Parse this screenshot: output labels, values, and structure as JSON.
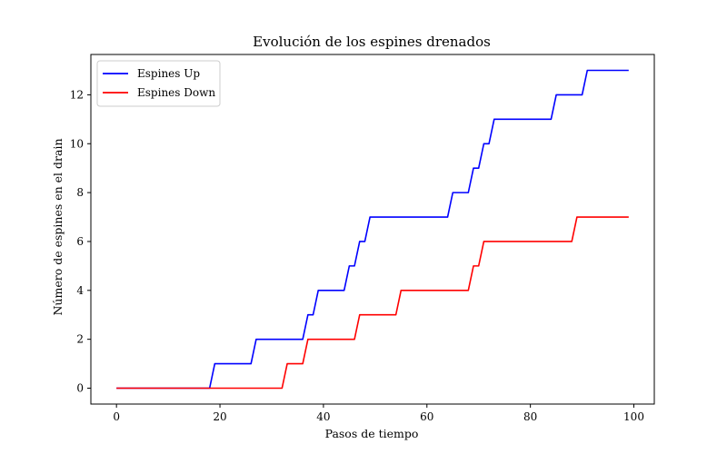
{
  "chart_data": {
    "type": "line",
    "title": "Evolución de los espines drenados",
    "xlabel": "Pasos de tiempo",
    "ylabel": "Número de espines en el drain",
    "xlim": [
      -4.95,
      103.95
    ],
    "ylim": [
      -0.65,
      13.65
    ],
    "xticks": [
      0,
      20,
      40,
      60,
      80,
      100
    ],
    "yticks": [
      0,
      2,
      4,
      6,
      8,
      10,
      12
    ],
    "grid": false,
    "legend_position": "top-left",
    "series": [
      {
        "name": "Espines Up",
        "color": "#0000ff",
        "x": [
          0,
          18,
          19,
          26,
          27,
          36,
          37,
          38,
          39,
          44,
          45,
          46,
          47,
          48,
          49,
          64,
          65,
          68,
          69,
          70,
          71,
          72,
          73,
          84,
          85,
          90,
          91,
          99
        ],
        "y": [
          0,
          0,
          1,
          1,
          2,
          2,
          3,
          3,
          4,
          4,
          5,
          5,
          6,
          6,
          7,
          7,
          8,
          8,
          9,
          9,
          10,
          10,
          11,
          11,
          12,
          12,
          13,
          13
        ]
      },
      {
        "name": "Espines Down",
        "color": "#ff0000",
        "x": [
          0,
          32,
          33,
          36,
          37,
          46,
          47,
          54,
          55,
          68,
          69,
          70,
          71,
          88,
          89,
          99
        ],
        "y": [
          0,
          0,
          1,
          1,
          2,
          2,
          3,
          3,
          4,
          4,
          5,
          5,
          6,
          6,
          7,
          7
        ]
      }
    ]
  }
}
